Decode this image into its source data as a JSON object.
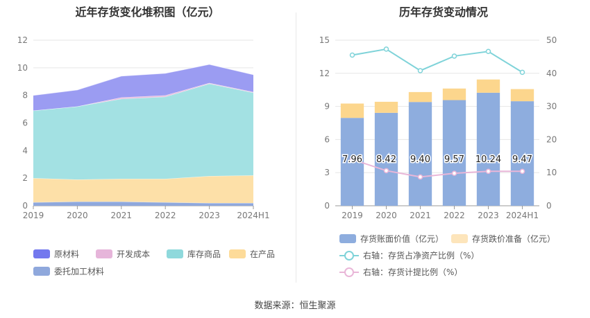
{
  "source_text": "数据来源：恒生聚源",
  "chart_data": [
    {
      "type": "area",
      "title": "近年存货变化堆积图（亿元）",
      "categories": [
        "2019",
        "2020",
        "2021",
        "2022",
        "2023",
        "2024H1"
      ],
      "ylim": [
        0,
        12
      ],
      "yticks": [
        "0",
        "2",
        "4",
        "6",
        "8",
        "10",
        "12"
      ],
      "grid": true,
      "legend_position": "bottom",
      "series": [
        {
          "name": "委托加工材料",
          "color": "#8fa8dc",
          "values": [
            0.25,
            0.3,
            0.3,
            0.25,
            0.2,
            0.2
          ]
        },
        {
          "name": "在产品",
          "color": "#fde0a8",
          "values": [
            1.75,
            1.6,
            1.65,
            1.7,
            1.95,
            2.0
          ]
        },
        {
          "name": "库存商品",
          "color": "#a3e1e3",
          "values": [
            4.9,
            5.3,
            5.8,
            5.95,
            6.7,
            6.0
          ]
        },
        {
          "name": "开发成本",
          "color": "#e9bcdf",
          "values": [
            0.0,
            0.0,
            0.1,
            0.1,
            0.05,
            0.05
          ]
        },
        {
          "name": "原材料",
          "color": "#9b9cf2",
          "values": [
            1.1,
            1.2,
            1.55,
            1.6,
            1.35,
            1.25
          ]
        }
      ],
      "legend_colors": {
        "原材料": "#7378ee",
        "开发成本": "#e6b5da",
        "库存商品": "#8fd9dc",
        "在产品": "#fddb99",
        "委托加工材料": "#8fa8dc"
      }
    },
    {
      "type": "bar+line",
      "title": "历年存货变动情况",
      "categories": [
        "2019",
        "2020",
        "2021",
        "2022",
        "2023",
        "2024H1"
      ],
      "ylim_left": [
        0,
        15
      ],
      "yticks_left": [
        "0",
        "3",
        "6",
        "9",
        "12",
        "15"
      ],
      "ylim_right": [
        0,
        50
      ],
      "yticks_right": [
        "0",
        "10",
        "20",
        "30",
        "40",
        "50"
      ],
      "grid": true,
      "legend_position": "bottom",
      "bar_series": [
        {
          "name": "存货账面价值（亿元）",
          "color": "#8eadde",
          "values": [
            7.96,
            8.42,
            9.4,
            9.57,
            10.24,
            9.47
          ],
          "labels": [
            "7.96",
            "8.42",
            "9.40",
            "9.57",
            "10.24",
            "9.47"
          ]
        },
        {
          "name": "存货跌价准备（亿元）",
          "color": "#fcd68d",
          "legend_color": "#fde5bb",
          "values": [
            1.3,
            1.0,
            0.9,
            1.05,
            1.2,
            1.1
          ]
        }
      ],
      "line_series": [
        {
          "name": "右轴：存货占净资产比例（%）",
          "color": "#7fd3d9",
          "values": [
            45.5,
            47.3,
            40.8,
            45.2,
            46.6,
            40.3
          ]
        },
        {
          "name": "右轴：存货计提比例（%）",
          "color": "#e9b6d8",
          "values": [
            14.0,
            10.6,
            8.7,
            9.8,
            10.4,
            10.4
          ]
        }
      ]
    }
  ]
}
